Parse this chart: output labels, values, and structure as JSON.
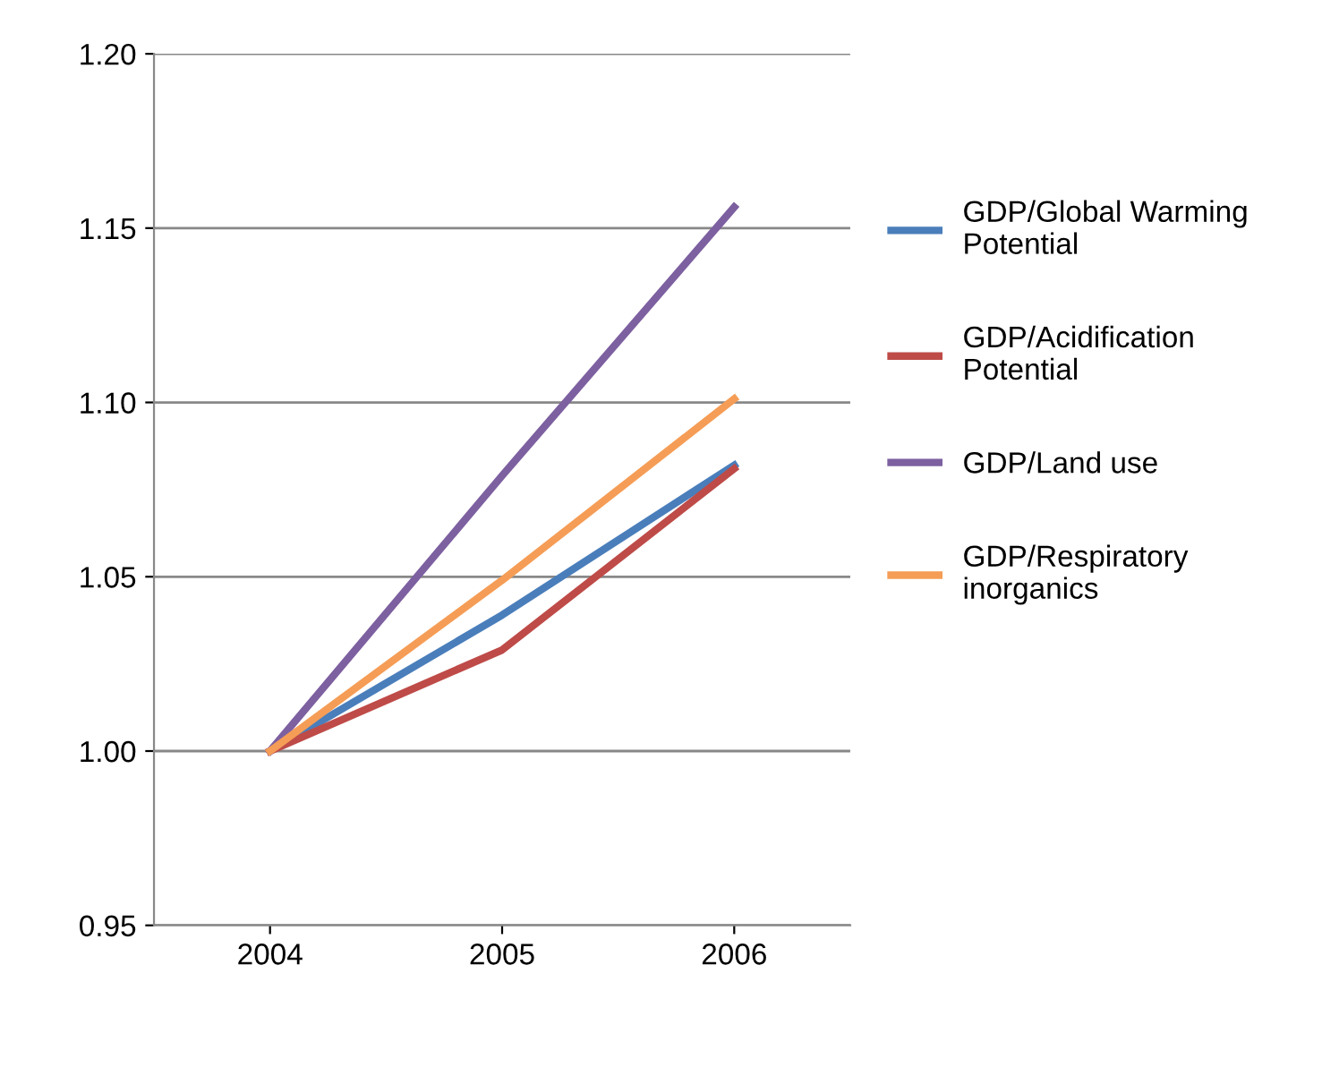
{
  "chart_data": {
    "type": "line",
    "categories": [
      "2004",
      "2005",
      "2006"
    ],
    "series": [
      {
        "name": "GDP/Global Warming Potential",
        "color": "#4a7ebb",
        "values": [
          1.0,
          1.039,
          1.082
        ]
      },
      {
        "name": "GDP/Acidification Potential",
        "color": "#be4b48",
        "values": [
          1.0,
          1.029,
          1.081
        ]
      },
      {
        "name": "GDP/Land use",
        "color": "#7d60a0",
        "values": [
          1.0,
          1.079,
          1.156
        ]
      },
      {
        "name": "GDP/Respiratory inorganics",
        "color": "#f59d56",
        "values": [
          1.0,
          1.049,
          1.101
        ]
      }
    ],
    "ylim": [
      0.95,
      1.2
    ],
    "yticks": [
      {
        "value": 0.95,
        "label": "0.95"
      },
      {
        "value": 1.0,
        "label": "1.00"
      },
      {
        "value": 1.05,
        "label": "1.05"
      },
      {
        "value": 1.1,
        "label": "1.10"
      },
      {
        "value": 1.15,
        "label": "1.15"
      },
      {
        "value": 1.2,
        "label": "1.20"
      }
    ],
    "grid": "y",
    "legend": "right",
    "marker": "none",
    "line_style": "solid"
  }
}
